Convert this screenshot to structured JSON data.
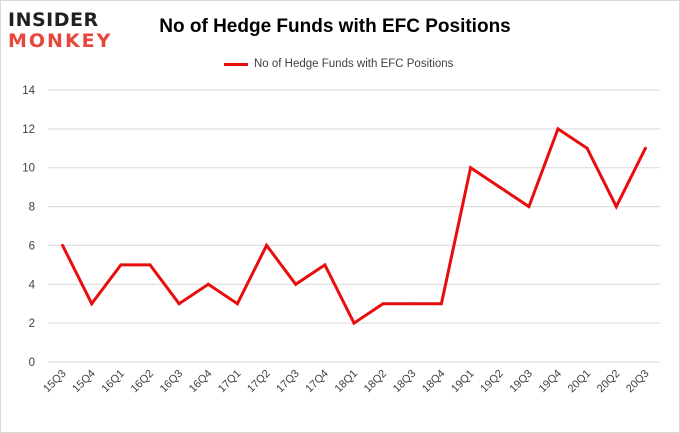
{
  "logo": {
    "line1": "INSIDER",
    "line2": "MONKEY"
  },
  "colors": {
    "series": "#e80e0e",
    "grid": "#d9d9d9",
    "logo_accent": "#e8463a"
  },
  "chart_data": {
    "type": "line",
    "title": "No of Hedge Funds with EFC Positions",
    "xlabel": "",
    "ylabel": "",
    "legend_position": "top-center",
    "grid": true,
    "ylim": [
      0,
      14
    ],
    "yticks": [
      0,
      2,
      4,
      6,
      8,
      10,
      12,
      14
    ],
    "categories": [
      "15Q3",
      "15Q4",
      "16Q1",
      "16Q2",
      "16Q3",
      "16Q4",
      "17Q1",
      "17Q2",
      "17Q3",
      "17Q4",
      "18Q1",
      "18Q2",
      "18Q3",
      "18Q4",
      "19Q1",
      "19Q2",
      "19Q3",
      "19Q4",
      "20Q1",
      "20Q2",
      "20Q3"
    ],
    "series": [
      {
        "name": "No of Hedge Funds with EFC Positions",
        "values": [
          6,
          3,
          5,
          5,
          3,
          4,
          3,
          6,
          4,
          5,
          2,
          3,
          3,
          3,
          10,
          9,
          8,
          12,
          11,
          8,
          11
        ]
      }
    ]
  }
}
